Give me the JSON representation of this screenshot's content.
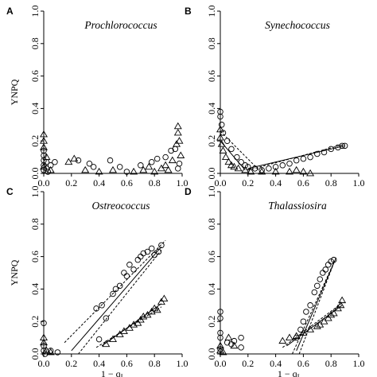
{
  "chart_data": [
    {
      "panel": "A",
      "title": "Prochlorococcus",
      "type": "scatter",
      "xlim": [
        0,
        1.0
      ],
      "ylim": [
        0,
        1.0
      ],
      "xticks": [
        "0.0",
        "0.2",
        "0.4",
        "0.6",
        "0.8",
        "1.0"
      ],
      "yticks": [
        "0.0",
        "0.2",
        "0.4",
        "0.6",
        "0.8",
        "1.0"
      ],
      "series": [
        {
          "marker": "circle",
          "points": [
            [
              0.0,
              0.02
            ],
            [
              0.0,
              0.05
            ],
            [
              0.0,
              0.08
            ],
            [
              0.0,
              0.11
            ],
            [
              0.0,
              0.14
            ],
            [
              0.02,
              0.03
            ],
            [
              0.02,
              0.07
            ],
            [
              0.03,
              0.01
            ],
            [
              0.05,
              0.05
            ],
            [
              0.08,
              0.07
            ],
            [
              0.25,
              0.08
            ],
            [
              0.33,
              0.06
            ],
            [
              0.36,
              0.04
            ],
            [
              0.48,
              0.08
            ],
            [
              0.55,
              0.04
            ],
            [
              0.6,
              0.01
            ],
            [
              0.7,
              0.05
            ],
            [
              0.78,
              0.07
            ],
            [
              0.82,
              0.09
            ],
            [
              0.88,
              0.1
            ],
            [
              0.92,
              0.14
            ],
            [
              0.95,
              0.15
            ],
            [
              0.97,
              0.03
            ],
            [
              0.98,
              0.06
            ]
          ]
        },
        {
          "marker": "triangle",
          "points": [
            [
              0.0,
              0.24
            ],
            [
              0.0,
              0.2
            ],
            [
              0.0,
              0.16
            ],
            [
              0.0,
              0.04
            ],
            [
              0.02,
              0.1
            ],
            [
              0.05,
              0.02
            ],
            [
              0.18,
              0.07
            ],
            [
              0.22,
              0.09
            ],
            [
              0.3,
              0.02
            ],
            [
              0.4,
              0.01
            ],
            [
              0.5,
              0.02
            ],
            [
              0.65,
              0.01
            ],
            [
              0.72,
              0.02
            ],
            [
              0.76,
              0.04
            ],
            [
              0.8,
              0.01
            ],
            [
              0.85,
              0.03
            ],
            [
              0.88,
              0.05
            ],
            [
              0.9,
              0.02
            ],
            [
              0.93,
              0.08
            ],
            [
              0.97,
              0.29
            ],
            [
              0.97,
              0.25
            ],
            [
              0.96,
              0.18
            ],
            [
              0.98,
              0.2
            ],
            [
              0.99,
              0.11
            ]
          ]
        }
      ],
      "fits": []
    },
    {
      "panel": "B",
      "title": "Synechococcus",
      "type": "scatter",
      "xlim": [
        0,
        1.0
      ],
      "ylim": [
        0,
        1.0
      ],
      "xticks": [
        "0.0",
        "0.2",
        "0.4",
        "0.6",
        "0.8",
        "1.0"
      ],
      "yticks": [
        "0.0",
        "0.2",
        "0.4",
        "0.6",
        "0.8",
        "1.0"
      ],
      "series": [
        {
          "marker": "circle",
          "points": [
            [
              0.0,
              0.38
            ],
            [
              0.0,
              0.35
            ],
            [
              0.01,
              0.3
            ],
            [
              0.02,
              0.25
            ],
            [
              0.05,
              0.2
            ],
            [
              0.08,
              0.15
            ],
            [
              0.12,
              0.1
            ],
            [
              0.15,
              0.07
            ],
            [
              0.18,
              0.05
            ],
            [
              0.2,
              0.04
            ],
            [
              0.25,
              0.03
            ],
            [
              0.3,
              0.02
            ],
            [
              0.35,
              0.03
            ],
            [
              0.4,
              0.04
            ],
            [
              0.45,
              0.05
            ],
            [
              0.5,
              0.06
            ],
            [
              0.55,
              0.08
            ],
            [
              0.6,
              0.09
            ],
            [
              0.65,
              0.1
            ],
            [
              0.7,
              0.12
            ],
            [
              0.75,
              0.13
            ],
            [
              0.8,
              0.15
            ],
            [
              0.85,
              0.16
            ],
            [
              0.88,
              0.17
            ],
            [
              0.9,
              0.17
            ]
          ]
        },
        {
          "marker": "triangle",
          "points": [
            [
              0.0,
              0.27
            ],
            [
              0.0,
              0.22
            ],
            [
              0.01,
              0.18
            ],
            [
              0.02,
              0.14
            ],
            [
              0.04,
              0.1
            ],
            [
              0.06,
              0.07
            ],
            [
              0.08,
              0.05
            ],
            [
              0.1,
              0.04
            ],
            [
              0.13,
              0.03
            ],
            [
              0.18,
              0.02
            ],
            [
              0.22,
              0.01
            ],
            [
              0.3,
              0.01
            ],
            [
              0.4,
              0.01
            ],
            [
              0.5,
              0.01
            ],
            [
              0.55,
              0.02
            ],
            [
              0.6,
              0.01
            ],
            [
              0.65,
              0.0
            ]
          ]
        }
      ],
      "fits": [
        {
          "style": "dash",
          "from": [
            0.0,
            0.26
          ],
          "to": [
            0.28,
            0.02
          ]
        },
        {
          "style": "solid",
          "from": [
            0.0,
            0.2
          ],
          "to": [
            0.18,
            0.02
          ]
        },
        {
          "style": "solid",
          "from": [
            0.2,
            0.03
          ],
          "to": [
            0.9,
            0.17
          ]
        },
        {
          "style": "dash",
          "from": [
            0.2,
            0.02
          ],
          "to": [
            0.9,
            0.18
          ]
        }
      ]
    },
    {
      "panel": "C",
      "title": "Ostreococcus",
      "type": "scatter",
      "xlim": [
        0,
        1.0
      ],
      "ylim": [
        0,
        1.0
      ],
      "xticks": [
        "0.0",
        "0.2",
        "0.4",
        "0.6",
        "0.8",
        "1.0"
      ],
      "yticks": [
        "0.0",
        "0.2",
        "0.4",
        "0.6",
        "0.8",
        "1.0"
      ],
      "series": [
        {
          "marker": "circle",
          "points": [
            [
              0.0,
              0.19
            ],
            [
              0.0,
              0.05
            ],
            [
              0.0,
              0.02
            ],
            [
              0.01,
              0.0
            ],
            [
              0.05,
              0.02
            ],
            [
              0.1,
              0.01
            ],
            [
              0.38,
              0.28
            ],
            [
              0.42,
              0.3
            ],
            [
              0.45,
              0.22
            ],
            [
              0.5,
              0.37
            ],
            [
              0.52,
              0.4
            ],
            [
              0.55,
              0.42
            ],
            [
              0.58,
              0.5
            ],
            [
              0.6,
              0.48
            ],
            [
              0.62,
              0.55
            ],
            [
              0.65,
              0.52
            ],
            [
              0.68,
              0.58
            ],
            [
              0.7,
              0.6
            ],
            [
              0.72,
              0.62
            ],
            [
              0.75,
              0.63
            ],
            [
              0.78,
              0.65
            ],
            [
              0.8,
              0.61
            ],
            [
              0.83,
              0.63
            ],
            [
              0.85,
              0.67
            ],
            [
              0.4,
              0.09
            ]
          ]
        },
        {
          "marker": "triangle",
          "points": [
            [
              0.0,
              0.1
            ],
            [
              0.0,
              0.07
            ],
            [
              0.02,
              0.02
            ],
            [
              0.05,
              0.01
            ],
            [
              0.45,
              0.06
            ],
            [
              0.5,
              0.09
            ],
            [
              0.55,
              0.12
            ],
            [
              0.58,
              0.14
            ],
            [
              0.62,
              0.16
            ],
            [
              0.65,
              0.18
            ],
            [
              0.68,
              0.19
            ],
            [
              0.7,
              0.21
            ],
            [
              0.72,
              0.23
            ],
            [
              0.75,
              0.24
            ],
            [
              0.78,
              0.26
            ],
            [
              0.8,
              0.28
            ],
            [
              0.82,
              0.27
            ],
            [
              0.85,
              0.32
            ],
            [
              0.87,
              0.34
            ]
          ]
        }
      ],
      "fits": [
        {
          "style": "dash",
          "from": [
            0.15,
            0.07
          ],
          "to": [
            0.88,
            0.7
          ]
        },
        {
          "style": "solid",
          "from": [
            0.2,
            0.02
          ],
          "to": [
            0.85,
            0.66
          ]
        },
        {
          "style": "dash",
          "from": [
            0.25,
            0.0
          ],
          "to": [
            0.85,
            0.64
          ]
        },
        {
          "style": "dash",
          "from": [
            0.38,
            0.04
          ],
          "to": [
            0.85,
            0.29
          ]
        },
        {
          "style": "solid",
          "from": [
            0.42,
            0.05
          ],
          "to": [
            0.85,
            0.31
          ]
        }
      ]
    },
    {
      "panel": "D",
      "title": "Thalassiosira",
      "type": "scatter",
      "xlim": [
        0,
        1.0
      ],
      "ylim": [
        0,
        1.0
      ],
      "xticks": [
        "0.0",
        "0.2",
        "0.4",
        "0.6",
        "0.8",
        "1.0"
      ],
      "yticks": [
        "0.0",
        "0.2",
        "0.4",
        "0.6",
        "0.8",
        "1.0"
      ],
      "series": [
        {
          "marker": "circle",
          "points": [
            [
              0.0,
              0.26
            ],
            [
              0.0,
              0.22
            ],
            [
              0.0,
              0.13
            ],
            [
              0.0,
              0.1
            ],
            [
              0.0,
              0.03
            ],
            [
              0.05,
              0.07
            ],
            [
              0.08,
              0.06
            ],
            [
              0.1,
              0.08
            ],
            [
              0.15,
              0.1
            ],
            [
              0.15,
              0.04
            ],
            [
              0.55,
              0.1
            ],
            [
              0.58,
              0.15
            ],
            [
              0.6,
              0.2
            ],
            [
              0.62,
              0.26
            ],
            [
              0.65,
              0.3
            ],
            [
              0.68,
              0.38
            ],
            [
              0.7,
              0.42
            ],
            [
              0.72,
              0.46
            ],
            [
              0.74,
              0.5
            ],
            [
              0.76,
              0.52
            ],
            [
              0.78,
              0.55
            ],
            [
              0.8,
              0.57
            ],
            [
              0.82,
              0.58
            ]
          ]
        },
        {
          "marker": "triangle",
          "points": [
            [
              0.0,
              0.05
            ],
            [
              0.0,
              0.02
            ],
            [
              0.02,
              0.01
            ],
            [
              0.06,
              0.1
            ],
            [
              0.1,
              0.05
            ],
            [
              0.45,
              0.08
            ],
            [
              0.5,
              0.1
            ],
            [
              0.55,
              0.11
            ],
            [
              0.6,
              0.13
            ],
            [
              0.65,
              0.15
            ],
            [
              0.7,
              0.17
            ],
            [
              0.72,
              0.18
            ],
            [
              0.75,
              0.2
            ],
            [
              0.78,
              0.22
            ],
            [
              0.8,
              0.24
            ],
            [
              0.82,
              0.25
            ],
            [
              0.85,
              0.28
            ],
            [
              0.87,
              0.3
            ],
            [
              0.88,
              0.33
            ]
          ]
        }
      ],
      "fits": [
        {
          "style": "dash",
          "from": [
            0.52,
            0.0
          ],
          "to": [
            0.84,
            0.6
          ]
        },
        {
          "style": "solid",
          "from": [
            0.55,
            0.02
          ],
          "to": [
            0.83,
            0.58
          ]
        },
        {
          "style": "dash",
          "from": [
            0.57,
            0.0
          ],
          "to": [
            0.82,
            0.56
          ]
        },
        {
          "style": "dash",
          "from": [
            0.45,
            0.04
          ],
          "to": [
            0.89,
            0.32
          ]
        },
        {
          "style": "solid",
          "from": [
            0.48,
            0.05
          ],
          "to": [
            0.88,
            0.3
          ]
        }
      ]
    }
  ],
  "labels": {
    "ylabel": "YNPQ",
    "xlabel": "1 − q",
    "xlabel_sub": "L"
  }
}
